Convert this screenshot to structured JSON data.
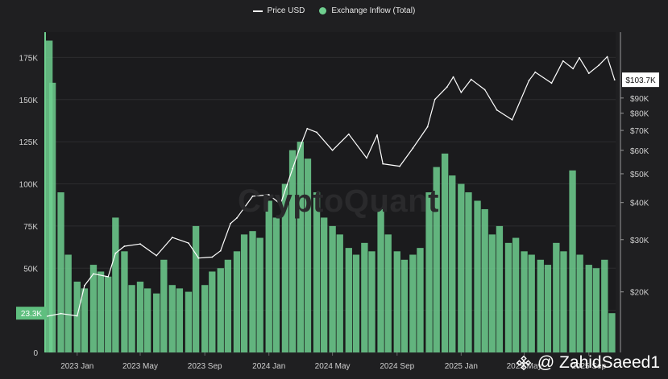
{
  "legend": {
    "price_label": "Price USD",
    "inflow_label": "Exchange Inflow (Total)"
  },
  "watermark": "CryptoQuant",
  "credit": "@ ZahidSaeed1",
  "chart_data": {
    "type": "bar",
    "colors": {
      "inflow": "#6fcf8f",
      "price": "#ffffff",
      "background": "#1f1f21"
    },
    "x_ticks": [
      "2023 Jan",
      "2023 May",
      "2023 Sep",
      "2024 Jan",
      "2024 May",
      "2024 Sep",
      "2025 Jan",
      "2025 May",
      "2025 Sep"
    ],
    "left_axis": {
      "ticks": [
        0,
        25000,
        50000,
        75000,
        100000,
        125000,
        150000,
        175000
      ],
      "tick_labels": [
        "0",
        "25K",
        "50K",
        "75K",
        "100K",
        "125K",
        "150K",
        "175K"
      ],
      "ylim": [
        0,
        190000
      ]
    },
    "right_axis": {
      "scale": "log",
      "ticks": [
        20000,
        30000,
        40000,
        50000,
        60000,
        70000,
        80000,
        90000
      ],
      "tick_labels": [
        "$20K",
        "$30K",
        "$40K",
        "$50K",
        "$60K",
        "$70K",
        "$80K",
        "$90K"
      ],
      "ylim": [
        12500,
        150000
      ]
    },
    "current_inflow_label": "23.3K",
    "current_price_label": "$103.7K",
    "current_inflow": 23300,
    "current_price": 103700,
    "series": [
      {
        "name": "Exchange Inflow (Total)",
        "kind": "bar",
        "x": [
          "2022-11-01",
          "2022-11-15",
          "2022-12-01",
          "2022-12-15",
          "2023-01-01",
          "2023-01-15",
          "2023-02-01",
          "2023-02-15",
          "2023-03-01",
          "2023-03-15",
          "2023-04-01",
          "2023-04-15",
          "2023-05-01",
          "2023-05-15",
          "2023-06-01",
          "2023-06-15",
          "2023-07-01",
          "2023-07-15",
          "2023-08-01",
          "2023-08-15",
          "2023-09-01",
          "2023-09-15",
          "2023-10-01",
          "2023-10-15",
          "2023-11-01",
          "2023-11-15",
          "2023-12-01",
          "2023-12-15",
          "2024-01-01",
          "2024-01-15",
          "2024-02-01",
          "2024-02-15",
          "2024-03-01",
          "2024-03-15",
          "2024-04-01",
          "2024-04-15",
          "2024-05-01",
          "2024-05-15",
          "2024-06-01",
          "2024-06-15",
          "2024-07-01",
          "2024-07-15",
          "2024-08-01",
          "2024-08-15",
          "2024-09-01",
          "2024-09-15",
          "2024-10-01",
          "2024-10-15",
          "2024-11-01",
          "2024-11-15",
          "2024-12-01",
          "2024-12-15",
          "2025-01-01",
          "2025-01-15",
          "2025-02-01",
          "2025-02-15",
          "2025-03-01",
          "2025-03-15",
          "2025-04-01",
          "2025-04-15",
          "2025-05-01",
          "2025-05-15",
          "2025-06-01",
          "2025-06-15",
          "2025-07-01",
          "2025-07-15",
          "2025-08-01",
          "2025-08-15",
          "2025-09-01",
          "2025-09-15",
          "2025-10-01",
          "2025-10-15"
        ],
        "values": [
          185000,
          160000,
          95000,
          58000,
          42000,
          38000,
          52000,
          48000,
          45000,
          80000,
          60000,
          40000,
          42000,
          38000,
          35000,
          55000,
          40000,
          38000,
          36000,
          75000,
          40000,
          48000,
          50000,
          55000,
          60000,
          70000,
          72000,
          68000,
          90000,
          80000,
          100000,
          120000,
          125000,
          115000,
          95000,
          80000,
          75000,
          70000,
          62000,
          58000,
          65000,
          60000,
          85000,
          70000,
          60000,
          55000,
          58000,
          62000,
          95000,
          110000,
          118000,
          105000,
          100000,
          95000,
          90000,
          85000,
          70000,
          75000,
          65000,
          68000,
          60000,
          58000,
          55000,
          52000,
          65000,
          60000,
          108000,
          58000,
          52000,
          50000,
          55000,
          23300
        ]
      },
      {
        "name": "Price USD",
        "kind": "line",
        "x": [
          "2022-11-01",
          "2022-12-01",
          "2023-01-01",
          "2023-01-15",
          "2023-02-01",
          "2023-03-01",
          "2023-03-15",
          "2023-04-01",
          "2023-05-01",
          "2023-06-01",
          "2023-07-01",
          "2023-08-01",
          "2023-08-20",
          "2023-09-15",
          "2023-10-01",
          "2023-10-20",
          "2023-11-01",
          "2023-12-01",
          "2024-01-01",
          "2024-01-23",
          "2024-02-15",
          "2024-03-01",
          "2024-03-14",
          "2024-04-01",
          "2024-05-01",
          "2024-06-01",
          "2024-07-05",
          "2024-07-25",
          "2024-08-05",
          "2024-09-06",
          "2024-10-01",
          "2024-10-29",
          "2024-11-12",
          "2024-12-05",
          "2024-12-17",
          "2025-01-01",
          "2025-01-20",
          "2025-02-15",
          "2025-03-10",
          "2025-04-08",
          "2025-05-10",
          "2025-05-22",
          "2025-06-22",
          "2025-07-14",
          "2025-08-02",
          "2025-08-14",
          "2025-09-01",
          "2025-09-20",
          "2025-10-06",
          "2025-10-20"
        ],
        "values": [
          16500,
          16900,
          16600,
          21000,
          23000,
          22500,
          27000,
          28500,
          29000,
          26500,
          30500,
          29200,
          26000,
          26200,
          27500,
          34000,
          35500,
          42000,
          42500,
          39500,
          52000,
          62000,
          71000,
          69000,
          60000,
          68000,
          56500,
          67500,
          54000,
          53000,
          61000,
          72000,
          89000,
          98000,
          106000,
          94000,
          104000,
          96000,
          82000,
          76000,
          103000,
          110000,
          101000,
          120000,
          113000,
          123000,
          109000,
          116000,
          124000,
          103700
        ]
      }
    ],
    "xlabel": "",
    "ylabel": ""
  }
}
